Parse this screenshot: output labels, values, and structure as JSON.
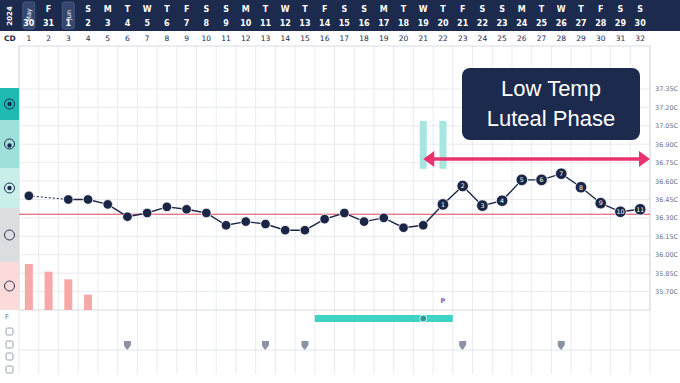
{
  "chart_data": {
    "type": "line",
    "year": "2024",
    "cd_label": "CD",
    "months": [
      {
        "label": "May",
        "cd": 1
      },
      {
        "label": "Jun",
        "cd": 3
      }
    ],
    "x": [
      1,
      2,
      3,
      4,
      5,
      6,
      7,
      8,
      9,
      10,
      11,
      12,
      13,
      14,
      15,
      16,
      17,
      18,
      19,
      20,
      21,
      22,
      23,
      24,
      25,
      26,
      27,
      28,
      29,
      30,
      31,
      32
    ],
    "dates": [
      30,
      31,
      1,
      2,
      3,
      4,
      5,
      6,
      7,
      8,
      9,
      10,
      11,
      12,
      13,
      14,
      15,
      16,
      17,
      18,
      19,
      20,
      21,
      22,
      23,
      24,
      25,
      26,
      27,
      28,
      29,
      30
    ],
    "weekdays": [
      "T",
      "F",
      "S",
      "S",
      "M",
      "T",
      "W",
      "T",
      "F",
      "S",
      "S",
      "M",
      "T",
      "W",
      "T",
      "F",
      "S",
      "S",
      "M",
      "T",
      "W",
      "T",
      "F",
      "S",
      "S",
      "M",
      "T",
      "W",
      "T",
      "F",
      "S",
      "S"
    ],
    "xlim": [
      0.5,
      32.5
    ],
    "ylim": [
      35.55,
      37.7
    ],
    "yticks": [
      {
        "value": 37.35,
        "label": "37.35C"
      },
      {
        "value": 37.2,
        "label": "37.20C"
      },
      {
        "value": 37.05,
        "label": "37.05C"
      },
      {
        "value": 36.9,
        "label": "36.90C"
      },
      {
        "value": 36.75,
        "label": "36.75C"
      },
      {
        "value": 36.6,
        "label": "36.60C"
      },
      {
        "value": 36.45,
        "label": "36.45C"
      },
      {
        "value": 36.3,
        "label": "36.30C"
      },
      {
        "value": 36.15,
        "label": "36.15C"
      },
      {
        "value": 36.0,
        "label": "36.00C"
      },
      {
        "value": 35.85,
        "label": "35.85C"
      },
      {
        "value": 35.7,
        "label": "35.70C"
      }
    ],
    "grid": true,
    "series": [
      {
        "color": "#1b2647",
        "marker": "circle",
        "values": [
          36.48,
          null,
          36.45,
          36.45,
          36.41,
          36.31,
          36.34,
          36.39,
          36.37,
          36.34,
          36.24,
          36.27,
          36.25,
          36.2,
          36.2,
          36.29,
          36.34,
          36.27,
          36.3,
          36.22,
          36.24,
          36.41,
          36.56,
          36.4,
          36.44,
          36.61,
          36.61,
          36.66,
          36.55,
          36.42,
          36.35,
          36.37
        ],
        "point_labels": [
          null,
          null,
          null,
          null,
          null,
          null,
          null,
          null,
          null,
          null,
          null,
          null,
          null,
          null,
          null,
          null,
          null,
          null,
          null,
          null,
          null,
          1,
          2,
          3,
          4,
          5,
          6,
          7,
          8,
          9,
          10,
          11
        ]
      }
    ],
    "coverline": {
      "value": 36.33,
      "color": "#e0435a"
    },
    "annotation": {
      "text": [
        "Low Temp",
        "Luteal Phase"
      ],
      "from": 21,
      "to": 32.5,
      "y": 36.78,
      "color": "#e8336e"
    },
    "peak_bars": {
      "x": [
        21,
        22
      ],
      "top": 37.09,
      "bottom": 36.7,
      "color": "#a6e6e0"
    },
    "period": {
      "x": [
        1,
        2,
        3,
        4
      ],
      "values": [
        3,
        2.5,
        2,
        1
      ],
      "ylim": [
        0,
        3
      ],
      "color": "#f5a9a9"
    },
    "fertile_window": {
      "from": 16,
      "to": 22,
      "peak": 21,
      "color": "#3fd3c4"
    },
    "ovulation": {
      "cd": 22,
      "label": "P"
    },
    "row_label": "F",
    "events": [
      6,
      13,
      15,
      23,
      28
    ]
  }
}
